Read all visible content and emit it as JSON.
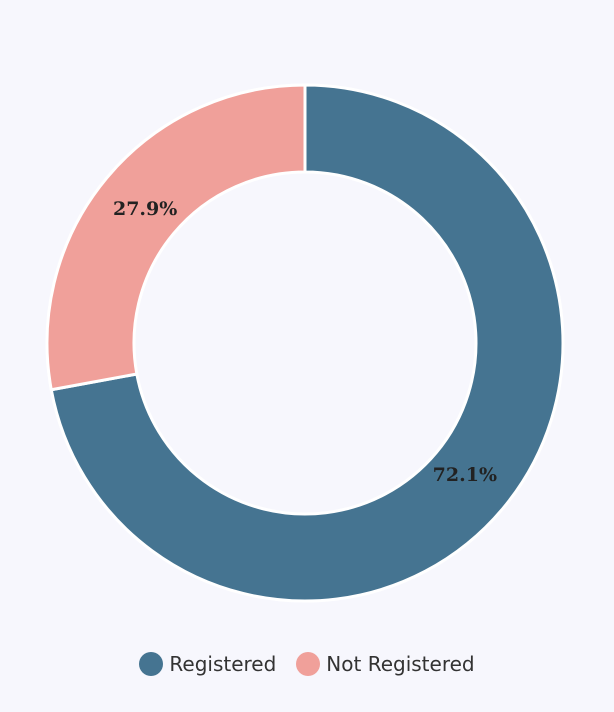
{
  "chart_data": {
    "type": "donut",
    "categories": [
      "Registered",
      "Not Registered"
    ],
    "values": [
      72.1,
      27.9
    ],
    "value_labels": [
      "72.1%",
      "27.9%"
    ],
    "colors": [
      "#457491",
      "#f0a09a"
    ],
    "legend": "bottom"
  }
}
